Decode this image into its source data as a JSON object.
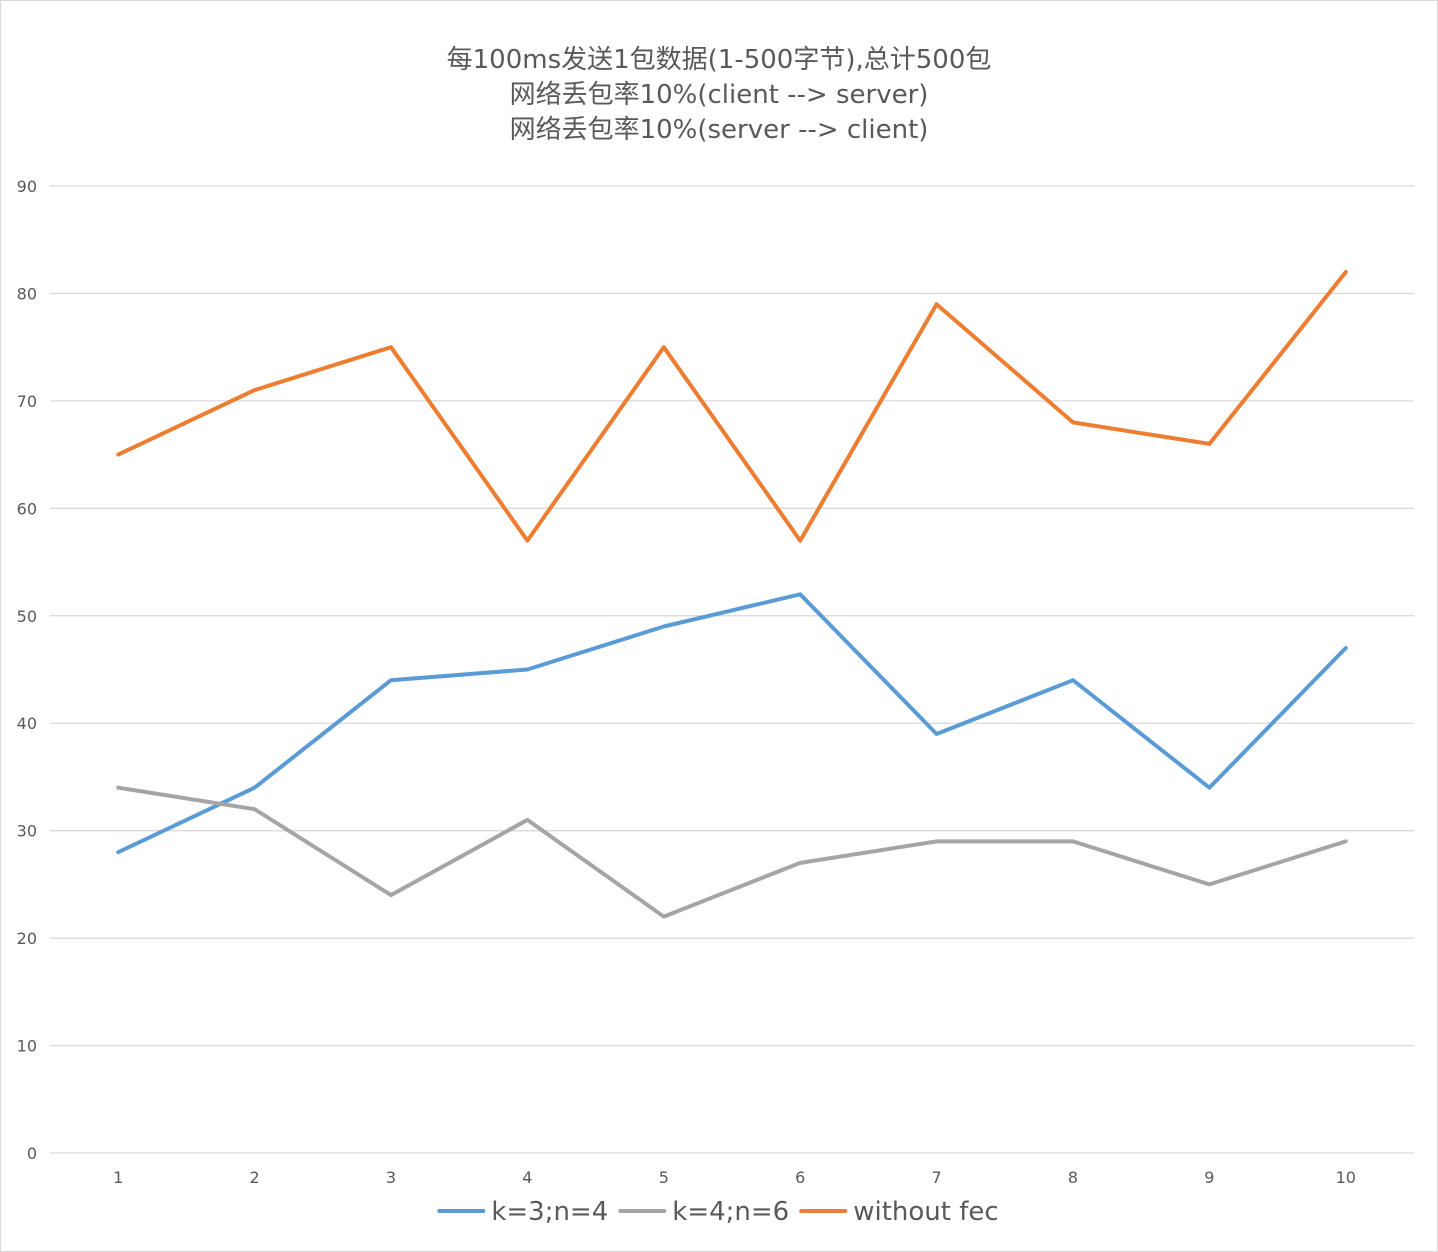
{
  "chart_data": {
    "type": "line",
    "title_lines": [
      "每100ms发送1包数据(1-500字节),总计500包",
      "网络丢包率10%(client --> server)",
      "网络丢包率10%(server --> client)"
    ],
    "xlabel": "",
    "ylabel": "",
    "categories": [
      "1",
      "2",
      "3",
      "4",
      "5",
      "6",
      "7",
      "8",
      "9",
      "10"
    ],
    "ylim": [
      0,
      90
    ],
    "yticks": [
      "0",
      "10",
      "20",
      "30",
      "40",
      "50",
      "60",
      "70",
      "80",
      "90"
    ],
    "grid": true,
    "legend_position": "bottom",
    "series": [
      {
        "name": "k=3;n=4",
        "color": "#5b9bd5",
        "values": [
          28,
          34,
          44,
          45,
          49,
          52,
          39,
          44,
          34,
          47
        ]
      },
      {
        "name": "k=4;n=6",
        "color": "#a5a5a5",
        "values": [
          34,
          32,
          24,
          31,
          22,
          27,
          29,
          29,
          25,
          29
        ]
      },
      {
        "name": "without fec",
        "color": "#ed7d31",
        "values": [
          65,
          71,
          75,
          57,
          75,
          57,
          79,
          68,
          66,
          82
        ]
      }
    ]
  }
}
